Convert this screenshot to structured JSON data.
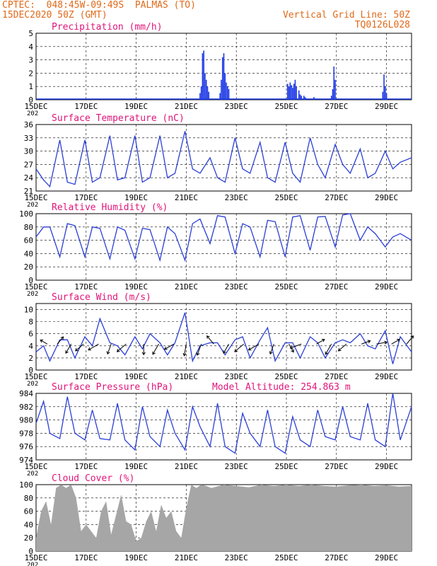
{
  "header": {
    "left_line1": "CPTEC:  048:45W-09:49S  PALMAS (TO)",
    "left_line2": "15DEC2020 50Z (GMT)",
    "right_line1": "Vertical Grid Line: 50Z",
    "right_line2": "TQ0126L028",
    "model_altitude": "Model Altitude: 254.863 m"
  },
  "colors": {
    "header_text": "#e06a1a",
    "panel_title": "#e0147a",
    "series_line": "#2b3fd6",
    "precip_bar": "#1f3be6",
    "cloud_fill": "#a6a6a6",
    "wind_arrow": "#000000"
  },
  "x_axis": {
    "tick_labels": [
      "15DEC",
      "17DEC",
      "19DEC",
      "21DEC",
      "23DEC",
      "25DEC",
      "27DEC",
      "29DEC"
    ],
    "year_label": "202",
    "range_days": [
      0,
      15
    ]
  },
  "chart_data": [
    {
      "type": "bar",
      "title": "Precipitation (mm/h)",
      "ylim": [
        0,
        5
      ],
      "yticks": [
        "5",
        "4",
        "3",
        "2",
        "1",
        "0"
      ],
      "day_offset": [
        6.55,
        6.6,
        6.65,
        6.7,
        6.75,
        6.8,
        6.85,
        6.9,
        7.35,
        7.4,
        7.45,
        7.5,
        7.55,
        7.6,
        7.65,
        7.7,
        10.05,
        10.1,
        10.15,
        10.2,
        10.25,
        10.3,
        10.35,
        10.4,
        10.5,
        10.55,
        10.6,
        10.7,
        10.75,
        10.8,
        11.1,
        11.15,
        11.8,
        11.85,
        11.9,
        11.95,
        13.85,
        13.9,
        13.95,
        14.0
      ],
      "values": [
        0.5,
        1.0,
        3.5,
        3.7,
        2.0,
        1.5,
        1.0,
        0.6,
        0.5,
        1.5,
        3.2,
        3.5,
        2.0,
        1.3,
        1.0,
        0.8,
        1.2,
        1.0,
        1.3,
        1.1,
        0.9,
        1.2,
        1.5,
        1.0,
        0.7,
        0.4,
        0.3,
        0.3,
        0.2,
        0.1,
        0.2,
        0.1,
        0.3,
        0.8,
        2.5,
        1.5,
        0.6,
        1.9,
        1.0,
        0.5
      ]
    },
    {
      "type": "line",
      "title": "Surface Temperature (nC)",
      "ylim": [
        21,
        36
      ],
      "yticks": [
        "36",
        "33",
        "30",
        "27",
        "24",
        "21"
      ],
      "day_offset": [
        0,
        0.3,
        0.55,
        0.95,
        1.25,
        1.55,
        1.95,
        2.25,
        2.55,
        2.95,
        3.25,
        3.55,
        3.95,
        4.25,
        4.55,
        4.95,
        5.25,
        5.55,
        5.95,
        6.25,
        6.55,
        6.95,
        7.25,
        7.55,
        7.95,
        8.25,
        8.55,
        8.95,
        9.25,
        9.55,
        9.95,
        10.25,
        10.55,
        10.95,
        11.25,
        11.55,
        11.95,
        12.25,
        12.55,
        12.95,
        13.25,
        13.55,
        13.95,
        14.25,
        14.55,
        15
      ],
      "values": [
        26,
        23.5,
        22,
        32.5,
        23,
        22.5,
        32.5,
        23,
        24,
        33.5,
        23.5,
        24,
        33.5,
        23,
        24,
        33.5,
        24,
        25,
        34.5,
        26,
        25,
        28.5,
        24,
        23,
        33,
        26,
        25,
        32,
        24,
        23,
        32,
        25,
        23,
        33,
        27,
        24,
        31.5,
        27,
        25,
        30.5,
        24,
        25,
        30,
        26,
        27.5,
        28.5
      ]
    },
    {
      "type": "line",
      "title": "Relative Humidity (%)",
      "ylim": [
        0,
        100
      ],
      "yticks": [
        "100",
        "80",
        "60",
        "40",
        "20",
        "0"
      ],
      "day_offset": [
        0,
        0.3,
        0.55,
        0.95,
        1.25,
        1.55,
        1.95,
        2.25,
        2.55,
        2.95,
        3.25,
        3.55,
        3.95,
        4.25,
        4.55,
        4.95,
        5.25,
        5.55,
        5.95,
        6.25,
        6.55,
        6.95,
        7.25,
        7.55,
        7.95,
        8.25,
        8.55,
        8.95,
        9.25,
        9.55,
        9.95,
        10.25,
        10.55,
        10.95,
        11.25,
        11.55,
        11.95,
        12.25,
        12.55,
        12.95,
        13.25,
        13.55,
        13.95,
        14.25,
        14.55,
        15
      ],
      "values": [
        65,
        80,
        80,
        35,
        85,
        82,
        35,
        80,
        78,
        32,
        80,
        75,
        32,
        78,
        76,
        30,
        80,
        70,
        30,
        85,
        92,
        55,
        97,
        95,
        40,
        85,
        80,
        35,
        90,
        88,
        35,
        95,
        97,
        45,
        95,
        96,
        50,
        98,
        100,
        60,
        80,
        70,
        50,
        65,
        70,
        60
      ]
    },
    {
      "type": "line",
      "title": "Surface Wind (m/s)",
      "ylim": [
        0,
        11
      ],
      "yticks": [
        "10",
        "8",
        "6",
        "4",
        "2",
        "0"
      ],
      "day_offset": [
        0,
        0.3,
        0.55,
        0.95,
        1.25,
        1.55,
        1.95,
        2.25,
        2.55,
        2.95,
        3.25,
        3.55,
        3.95,
        4.25,
        4.55,
        4.95,
        5.25,
        5.55,
        5.95,
        6.25,
        6.55,
        6.95,
        7.25,
        7.55,
        7.95,
        8.25,
        8.55,
        8.95,
        9.25,
        9.55,
        9.95,
        10.25,
        10.55,
        10.95,
        11.25,
        11.55,
        11.95,
        12.25,
        12.55,
        12.95,
        13.25,
        13.55,
        13.95,
        14.25,
        14.55,
        15
      ],
      "values": [
        3,
        4,
        1.5,
        5,
        5,
        2,
        5.5,
        4,
        8.5,
        4.5,
        4,
        2.5,
        5.5,
        3.5,
        6,
        4.5,
        2.5,
        4.5,
        9.5,
        1.5,
        4,
        4.5,
        4.5,
        2.5,
        5,
        5.5,
        2,
        5,
        7,
        1.5,
        4.5,
        4.5,
        2,
        5.5,
        4.5,
        2,
        4.5,
        5,
        4.5,
        6,
        4,
        3.5,
        6.5,
        1,
        5.5,
        3
      ],
      "arrows": {
        "day_offset": [
          0.45,
          0.85,
          1.4,
          1.9,
          2.5,
          3.0,
          3.6,
          4.3,
          4.9,
          5.5,
          6.0,
          6.6,
          7.1,
          7.7,
          8.3,
          8.9,
          9.5,
          10.1,
          10.6,
          11.2,
          11.8,
          12.4,
          13.0,
          13.6,
          14.2,
          14.8
        ],
        "direction_deg": [
          300,
          40,
          210,
          230,
          240,
          200,
          230,
          180,
          210,
          240,
          190,
          200,
          320,
          210,
          230,
          240,
          200,
          150,
          250,
          60,
          210,
          230,
          70,
          80,
          60,
          40
        ],
        "speed": [
          3,
          4,
          5,
          5,
          6,
          5,
          6,
          5,
          6,
          5,
          6,
          6,
          5,
          5,
          6,
          6,
          5,
          4,
          6,
          4,
          6,
          5,
          4,
          5,
          4,
          5
        ]
      }
    },
    {
      "type": "line",
      "title": "Surface Pressure (hPa)",
      "ylim": [
        974,
        984
      ],
      "yticks": [
        "984",
        "982",
        "980",
        "978",
        "976",
        "974"
      ],
      "day_offset": [
        0,
        0.3,
        0.55,
        0.95,
        1.25,
        1.55,
        1.95,
        2.25,
        2.55,
        2.95,
        3.25,
        3.55,
        3.95,
        4.25,
        4.55,
        4.95,
        5.25,
        5.55,
        5.95,
        6.25,
        6.55,
        6.95,
        7.25,
        7.55,
        7.95,
        8.25,
        8.55,
        8.95,
        9.25,
        9.55,
        9.95,
        10.25,
        10.55,
        10.95,
        11.25,
        11.55,
        11.95,
        12.25,
        12.55,
        12.95,
        13.25,
        13.55,
        13.95,
        14.25,
        14.55,
        15
      ],
      "values": [
        979.5,
        982.8,
        978,
        977.2,
        983.5,
        978,
        977,
        981.5,
        977.2,
        977,
        982.5,
        977,
        975.5,
        982,
        977.5,
        976,
        981.5,
        978,
        975.5,
        982,
        979,
        976,
        982.5,
        976,
        975,
        981,
        978,
        976,
        981.5,
        976,
        975,
        980.5,
        977,
        976,
        981.5,
        977.5,
        977,
        982,
        977.5,
        977,
        982.5,
        977,
        976,
        984,
        977,
        982
      ]
    },
    {
      "type": "area",
      "title": "Cloud Cover (%)",
      "ylim": [
        0,
        100
      ],
      "yticks": [
        "100",
        "80",
        "60",
        "40",
        "20",
        "0"
      ],
      "day_offset": [
        0,
        0.2,
        0.4,
        0.6,
        0.8,
        1.0,
        1.2,
        1.4,
        1.6,
        1.8,
        2.0,
        2.2,
        2.4,
        2.6,
        2.8,
        3.0,
        3.2,
        3.4,
        3.6,
        3.8,
        4.0,
        4.2,
        4.4,
        4.6,
        4.8,
        5.0,
        5.2,
        5.4,
        5.6,
        5.8,
        6.0,
        6.2,
        6.4,
        6.6,
        6.8,
        7.0,
        7.5,
        8.0,
        8.5,
        9.0,
        9.5,
        10.0,
        10.5,
        11.0,
        11.5,
        12.0,
        12.5,
        13.0,
        13.5,
        14.0,
        14.5,
        15
      ],
      "values": [
        20,
        60,
        75,
        40,
        95,
        100,
        95,
        100,
        80,
        30,
        40,
        30,
        20,
        60,
        75,
        25,
        55,
        85,
        45,
        40,
        15,
        20,
        45,
        60,
        30,
        70,
        50,
        60,
        30,
        20,
        65,
        100,
        95,
        100,
        98,
        95,
        100,
        98,
        96,
        100,
        98,
        100,
        98,
        100,
        98,
        97,
        99,
        100,
        98,
        99,
        97,
        98
      ]
    }
  ]
}
